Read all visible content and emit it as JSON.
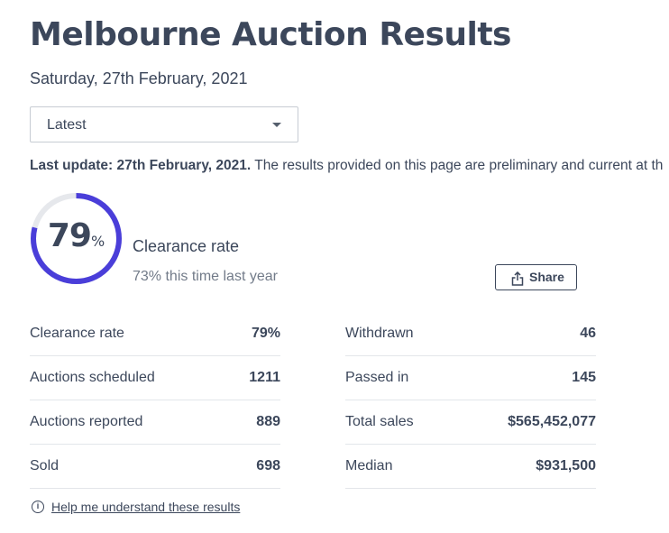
{
  "header": {
    "title": "Melbourne Auction Results",
    "date": "Saturday, 27th February, 2021"
  },
  "selector": {
    "value": "Latest",
    "icon": "caret-down-icon"
  },
  "update": {
    "bold": "Last update: 27th February, 2021.",
    "text": " The results provided on this page are preliminary and current at th"
  },
  "clearance": {
    "value": "79",
    "percent_sign": "%",
    "rate_fraction": 0.79,
    "label": "Clearance rate",
    "last_year": "73% this time last year",
    "ring_color": "#4a3ed9",
    "track_color": "#e6e8ec"
  },
  "share": {
    "label": "Share",
    "icon": "share-icon"
  },
  "stats_left": [
    {
      "label": "Clearance rate",
      "value": "79%"
    },
    {
      "label": "Auctions scheduled",
      "value": "1211"
    },
    {
      "label": "Auctions reported",
      "value": "889"
    },
    {
      "label": "Sold",
      "value": "698"
    }
  ],
  "stats_right": [
    {
      "label": "Withdrawn",
      "value": "46"
    },
    {
      "label": "Passed in",
      "value": "145"
    },
    {
      "label": "Total sales",
      "value": "$565,452,077"
    },
    {
      "label": "Median",
      "value": "$931,500"
    }
  ],
  "help": {
    "label": "Help me understand these results",
    "icon": "info-icon",
    "icon_glyph": "i"
  }
}
